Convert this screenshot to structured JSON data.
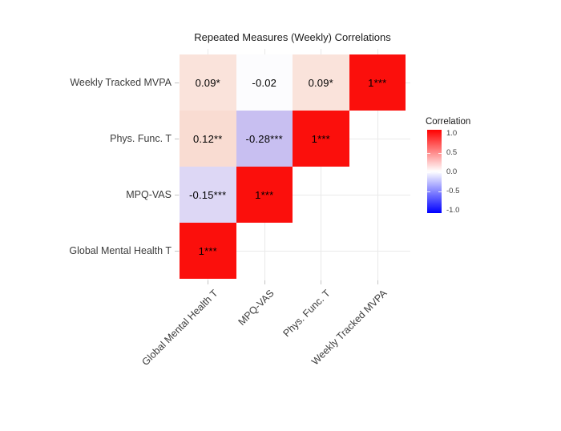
{
  "chart_data": {
    "type": "heatmap",
    "title": "Repeated Measures (Weekly) Correlations",
    "x_categories": [
      "Global Mental Health T",
      "MPQ-VAS",
      "Phys. Func. T",
      "Weekly Tracked MVPA"
    ],
    "y_categories": [
      "Weekly Tracked MVPA",
      "Phys. Func. T",
      "MPQ-VAS",
      "Global Mental Health T"
    ],
    "value_range": [
      -1,
      1
    ],
    "grid": true,
    "legend_position": "right",
    "shape": "lower-triangle-flipped",
    "cells": [
      {
        "row": 0,
        "col": 0,
        "value": 0.09,
        "label": "0.09*",
        "color": "#FAE3DB"
      },
      {
        "row": 0,
        "col": 1,
        "value": -0.02,
        "label": "-0.02",
        "color": "#FCFCFE"
      },
      {
        "row": 0,
        "col": 2,
        "value": 0.09,
        "label": "0.09*",
        "color": "#FAE3DB"
      },
      {
        "row": 0,
        "col": 3,
        "value": 1,
        "label": "1***",
        "color": "#FB0F0C"
      },
      {
        "row": 1,
        "col": 0,
        "value": 0.12,
        "label": "0.12**",
        "color": "#F9DCD2"
      },
      {
        "row": 1,
        "col": 1,
        "value": -0.28,
        "label": "-0.28***",
        "color": "#C8BFF1"
      },
      {
        "row": 1,
        "col": 2,
        "value": 1,
        "label": "1***",
        "color": "#FB0F0C"
      },
      {
        "row": 2,
        "col": 0,
        "value": -0.15,
        "label": "-0.15***",
        "color": "#DDD7F5"
      },
      {
        "row": 2,
        "col": 1,
        "value": 1,
        "label": "1***",
        "color": "#FB0F0C"
      },
      {
        "row": 3,
        "col": 0,
        "value": 1,
        "label": "1***",
        "color": "#FB0F0C"
      }
    ],
    "legend": {
      "title": "Correlation",
      "tick_labels": [
        "1.0",
        "0.5",
        "0.0",
        "-0.5",
        "-1.0"
      ],
      "gradient_high": "#FF0000",
      "gradient_mid": "#FFFFFF",
      "gradient_low": "#0000FF"
    }
  },
  "style": {
    "background": "#FFFFFF",
    "gridline_color": "#E9E9E9",
    "tick_color": "#C4C4C4",
    "axis_label_color": "#3C3C3C",
    "title_color": "#1A1A1A",
    "cell_text_color": "#000000"
  }
}
